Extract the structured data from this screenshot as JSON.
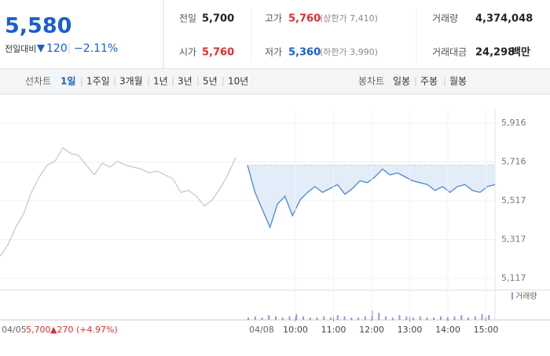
{
  "quote": {
    "price": "5,580",
    "change_label": "전일대비",
    "change": "120",
    "change_rate": "−2.11%"
  },
  "info": {
    "prev_close": {
      "label": "전일",
      "value": "5,700"
    },
    "open": {
      "label": "시가",
      "value": "5,760"
    },
    "high": {
      "label": "고가",
      "value": "5,760",
      "limit": "(상한가 7,410)"
    },
    "low": {
      "label": "저가",
      "value": "5,360",
      "limit": "(하한가 3,990)"
    },
    "volume": {
      "label": "거래량",
      "value": "4,374,048"
    },
    "amount": {
      "label": "거래대금",
      "value": "24,298",
      "unit": "백만"
    }
  },
  "tabs": {
    "line_label": "선차트",
    "line": [
      "1일",
      "1주일",
      "3개월",
      "1년",
      "3년",
      "5년",
      "10년"
    ],
    "candle_label": "봉차트",
    "candle": [
      "일봉",
      "주봉",
      "월봉"
    ]
  },
  "chart_data": {
    "type": "line",
    "ylim": [
      5065,
      5985
    ],
    "yticks": [
      {
        "value": 5916,
        "label": "5,916"
      },
      {
        "value": 5716,
        "label": "5,716"
      },
      {
        "value": 5517,
        "label": "5,517"
      },
      {
        "value": 5317,
        "label": "5,317"
      },
      {
        "value": 5117,
        "label": "5,117"
      }
    ],
    "reference_line": 5700,
    "series": [
      {
        "color": "#c9c9c9",
        "values": [
          5230,
          5290,
          5380,
          5450,
          5560,
          5640,
          5700,
          5720,
          5790,
          5760,
          5750,
          5700,
          5650,
          5710,
          5690,
          5720,
          5700,
          5690,
          5680,
          5660,
          5670,
          5650,
          5630,
          5560,
          5570,
          5540,
          5490,
          5520,
          5580,
          5650,
          5740
        ]
      },
      {
        "color": "#4a86d8",
        "values": [
          5700,
          5560,
          5470,
          5380,
          5500,
          5540,
          5440,
          5520,
          5560,
          5590,
          5560,
          5580,
          5600,
          5550,
          5580,
          5620,
          5610,
          5640,
          5680,
          5650,
          5660,
          5640,
          5620,
          5610,
          5600,
          5570,
          5590,
          5560,
          5590,
          5600,
          5570,
          5560,
          5590,
          5600
        ]
      }
    ],
    "volume": {
      "name": "거래량",
      "values": [
        2,
        3,
        2,
        4,
        3,
        2,
        3,
        5,
        3,
        2,
        2,
        3,
        2,
        4,
        3,
        2,
        2,
        3,
        8,
        6,
        3,
        2,
        4,
        3,
        2,
        3,
        2,
        2,
        3,
        2,
        3,
        4,
        2,
        3,
        5,
        4
      ]
    },
    "day_labels": [
      "04/05",
      "04/08"
    ],
    "prev_close_label": "5,700",
    "prev_change_label": "▲270 (+4.97%)",
    "xticks": [
      "10:00",
      "11:00",
      "12:00",
      "13:00",
      "14:00",
      "15:00"
    ]
  }
}
